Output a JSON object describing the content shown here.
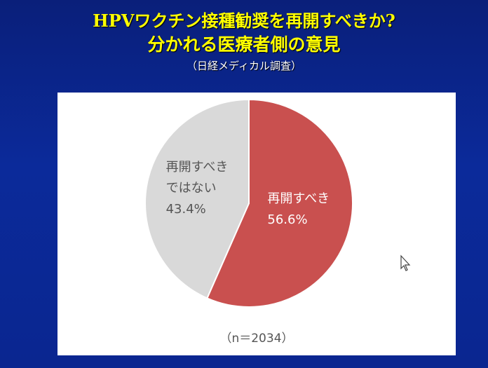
{
  "chart_data": {
    "type": "pie",
    "title": "HPVワクチン接種勧奨を再開すべきか?",
    "subtitle": "分かれる医療者側の意見",
    "source": "（日経メディカル調査）",
    "note": "（n＝2034）",
    "categories": [
      "再開すべき",
      "再開すべきではない"
    ],
    "values": [
      56.6,
      43.4
    ],
    "value_labels": [
      "56.6%",
      "43.4%"
    ],
    "colors": [
      "#c9504f",
      "#d9d9d9"
    ],
    "label_colors": [
      "#ffffff",
      "#555555"
    ]
  }
}
